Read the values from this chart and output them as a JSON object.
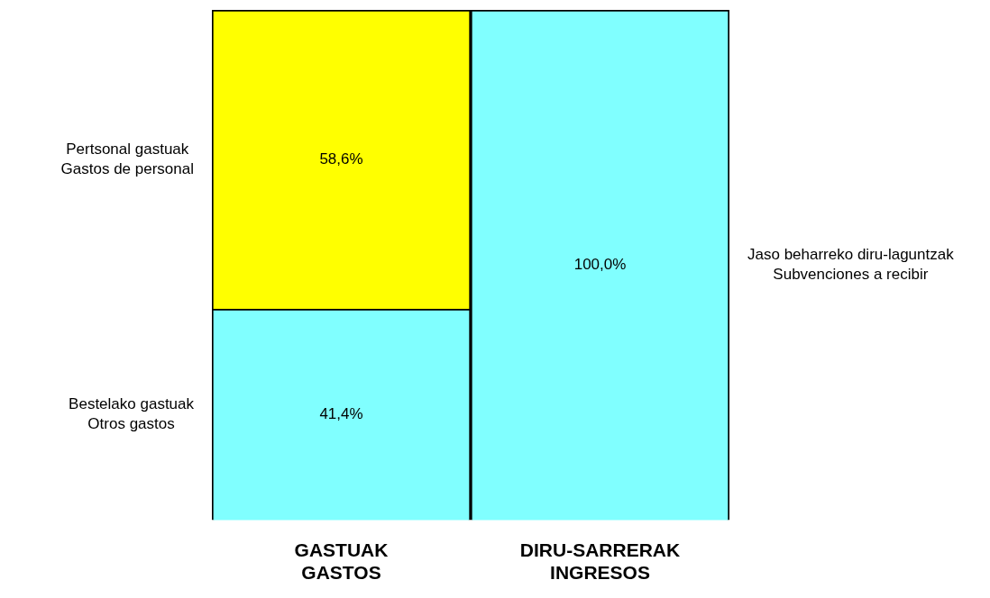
{
  "chart_data": {
    "type": "bar",
    "stacked": true,
    "categories": [
      "GASTUAK\nGASTOS",
      "DIRU-SARRERAK\nINGRESOS"
    ],
    "ylim": [
      0,
      100
    ],
    "tick_labels": "x",
    "series": [
      {
        "name": "Bestelako gastuak\nOtros gastos",
        "color": "#80ffff",
        "values": [
          41.4,
          null
        ],
        "value_labels": [
          "41,4%",
          null
        ]
      },
      {
        "name": "Pertsonal gastuak\nGastos de personal",
        "color": "#ffff00",
        "values": [
          58.6,
          null
        ],
        "value_labels": [
          "58,6%",
          null
        ]
      },
      {
        "name": "Jaso beharreko diru-laguntzak\nSubvenciones a recibir",
        "color": "#80ffff",
        "values": [
          null,
          100
        ],
        "value_labels": [
          null,
          "100,0%"
        ]
      }
    ]
  }
}
